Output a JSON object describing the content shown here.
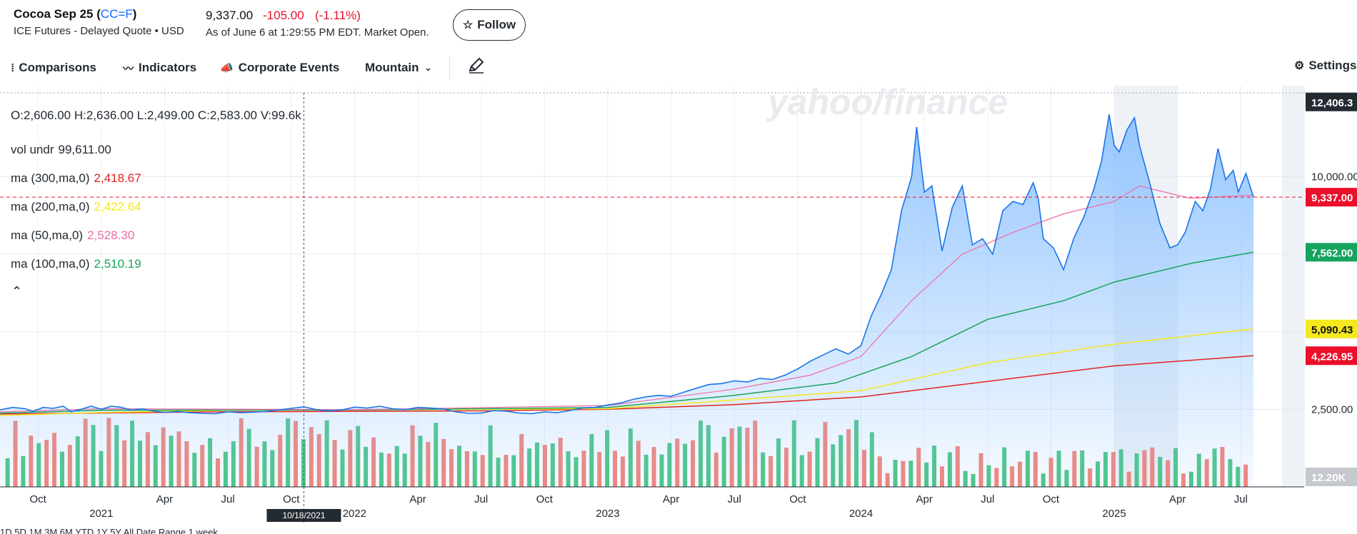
{
  "header": {
    "name": "Cocoa Sep 25",
    "ticker": "CC=F",
    "exchange": "ICE Futures - Delayed Quote • USD",
    "price": "9,337.00",
    "change": "-105.00",
    "change_pct": "(-1.11%)",
    "as_of": "As of June 6 at 1:29:55 PM EDT. Market Open.",
    "follow_label": "Follow"
  },
  "toolbar": {
    "comparisons": "Comparisons",
    "indicators": "Indicators",
    "corporate_events": "Corporate Events",
    "chart_type": "Mountain",
    "settings": "Settings"
  },
  "legend": {
    "ohlc": "O:2,606.00   H:2,636.00   L:2,499.00   C:2,583.00   V:99.6k",
    "vol_label": "vol undr",
    "vol_value": "99,611.00",
    "ma300_label": "ma (300,ma,0)",
    "ma300_value": "2,418.67",
    "ma200_label": "ma (200,ma,0)",
    "ma200_value": "2,422.64",
    "ma50_label": "ma (50,ma,0)",
    "ma50_value": "2,528.30",
    "ma100_label": "ma (100,ma,0)",
    "ma100_value": "2,510.19"
  },
  "watermark": "yahoo/finance",
  "crosshair_date": "10/18/2021",
  "colors": {
    "price_line": "#1a74e8",
    "area_fill": "#8fc3ff",
    "ma300": "#e3221f",
    "ma200": "#f5e81d",
    "ma50": "#f06aa4",
    "ma100": "#16a35e",
    "vol_up": "#3fc27c",
    "vol_down": "#f47b6e",
    "negative": "#eb0f29"
  },
  "chart_data": {
    "type": "area",
    "ylim": [
      0,
      12700
    ],
    "y_ticks": [
      {
        "value": 2500,
        "label": "2,500.00"
      },
      {
        "value": 5000,
        "label": ""
      },
      {
        "value": 7500,
        "label": ""
      },
      {
        "value": 10000,
        "label": "10,000.00"
      }
    ],
    "right_labels": [
      {
        "value": 12406,
        "label": "12,406.3",
        "bg": "#232a31",
        "fg": "#ffffff"
      },
      {
        "value": 9337,
        "label": "9,337.00",
        "bg": "#eb0f29",
        "fg": "#ffffff"
      },
      {
        "value": 7562,
        "label": "7,562.00",
        "bg": "#16a35e",
        "fg": "#ffffff"
      },
      {
        "value": 5090,
        "label": "5,090.43",
        "bg": "#f5e81d",
        "fg": "#111111"
      },
      {
        "value": 4227,
        "label": "4,226.95",
        "bg": "#eb0f29",
        "fg": "#ffffff"
      }
    ],
    "volume_label": "12.20K",
    "dashed_levels": [
      12406,
      9337
    ],
    "x_labels_month": [
      {
        "t": 2020.75,
        "label": "Oct"
      },
      {
        "t": 2021.25,
        "label": "Apr"
      },
      {
        "t": 2021.5,
        "label": "Jul"
      },
      {
        "t": 2021.75,
        "label": "Oct"
      },
      {
        "t": 2022.25,
        "label": "Apr"
      },
      {
        "t": 2022.5,
        "label": "Jul"
      },
      {
        "t": 2022.75,
        "label": "Oct"
      },
      {
        "t": 2023.25,
        "label": "Apr"
      },
      {
        "t": 2023.5,
        "label": "Jul"
      },
      {
        "t": 2023.75,
        "label": "Oct"
      },
      {
        "t": 2024.25,
        "label": "Apr"
      },
      {
        "t": 2024.5,
        "label": "Jul"
      },
      {
        "t": 2024.75,
        "label": "Oct"
      },
      {
        "t": 2025.25,
        "label": "Apr"
      },
      {
        "t": 2025.5,
        "label": "Jul"
      }
    ],
    "x_labels_year": [
      {
        "t": 2021.0,
        "label": "2021"
      },
      {
        "t": 2022.0,
        "label": "2022"
      },
      {
        "t": 2023.0,
        "label": "2023"
      },
      {
        "t": 2024.0,
        "label": "2024"
      },
      {
        "t": 2025.0,
        "label": "2025"
      }
    ],
    "xlim": [
      2020.6,
      2025.75
    ],
    "crosshair_t": 2021.8,
    "shade_range": [
      2025.0,
      2025.25
    ],
    "price": [
      [
        2020.6,
        2480
      ],
      [
        2020.65,
        2560
      ],
      [
        2020.7,
        2520
      ],
      [
        2020.73,
        2430
      ],
      [
        2020.77,
        2560
      ],
      [
        2020.81,
        2530
      ],
      [
        2020.85,
        2600
      ],
      [
        2020.88,
        2420
      ],
      [
        2020.92,
        2500
      ],
      [
        2020.96,
        2600
      ],
      [
        2021.0,
        2500
      ],
      [
        2021.04,
        2600
      ],
      [
        2021.08,
        2560
      ],
      [
        2021.12,
        2470
      ],
      [
        2021.16,
        2520
      ],
      [
        2021.2,
        2450
      ],
      [
        2021.25,
        2400
      ],
      [
        2021.3,
        2430
      ],
      [
        2021.35,
        2390
      ],
      [
        2021.4,
        2370
      ],
      [
        2021.45,
        2360
      ],
      [
        2021.5,
        2420
      ],
      [
        2021.55,
        2390
      ],
      [
        2021.6,
        2410
      ],
      [
        2021.65,
        2430
      ],
      [
        2021.7,
        2480
      ],
      [
        2021.75,
        2530
      ],
      [
        2021.8,
        2580
      ],
      [
        2021.85,
        2490
      ],
      [
        2021.9,
        2440
      ],
      [
        2021.95,
        2480
      ],
      [
        2022.0,
        2570
      ],
      [
        2022.05,
        2540
      ],
      [
        2022.1,
        2600
      ],
      [
        2022.15,
        2520
      ],
      [
        2022.2,
        2490
      ],
      [
        2022.25,
        2560
      ],
      [
        2022.3,
        2540
      ],
      [
        2022.35,
        2510
      ],
      [
        2022.4,
        2420
      ],
      [
        2022.45,
        2370
      ],
      [
        2022.5,
        2380
      ],
      [
        2022.55,
        2460
      ],
      [
        2022.6,
        2440
      ],
      [
        2022.65,
        2380
      ],
      [
        2022.7,
        2360
      ],
      [
        2022.75,
        2420
      ],
      [
        2022.8,
        2390
      ],
      [
        2022.85,
        2460
      ],
      [
        2022.9,
        2540
      ],
      [
        2022.95,
        2560
      ],
      [
        2023.0,
        2640
      ],
      [
        2023.05,
        2700
      ],
      [
        2023.1,
        2820
      ],
      [
        2023.15,
        2900
      ],
      [
        2023.2,
        2950
      ],
      [
        2023.25,
        2920
      ],
      [
        2023.3,
        3050
      ],
      [
        2023.35,
        3180
      ],
      [
        2023.4,
        3300
      ],
      [
        2023.45,
        3330
      ],
      [
        2023.5,
        3420
      ],
      [
        2023.55,
        3380
      ],
      [
        2023.6,
        3500
      ],
      [
        2023.65,
        3460
      ],
      [
        2023.7,
        3600
      ],
      [
        2023.75,
        3800
      ],
      [
        2023.8,
        4050
      ],
      [
        2023.85,
        4250
      ],
      [
        2023.9,
        4450
      ],
      [
        2023.95,
        4280
      ],
      [
        2024.0,
        4550
      ],
      [
        2024.04,
        5500
      ],
      [
        2024.08,
        6200
      ],
      [
        2024.12,
        7000
      ],
      [
        2024.16,
        8900
      ],
      [
        2024.2,
        10000
      ],
      [
        2024.22,
        11600
      ],
      [
        2024.25,
        9500
      ],
      [
        2024.28,
        9700
      ],
      [
        2024.32,
        7600
      ],
      [
        2024.36,
        9000
      ],
      [
        2024.4,
        9700
      ],
      [
        2024.44,
        7800
      ],
      [
        2024.48,
        8000
      ],
      [
        2024.52,
        7500
      ],
      [
        2024.56,
        8900
      ],
      [
        2024.6,
        9200
      ],
      [
        2024.64,
        9100
      ],
      [
        2024.68,
        9800
      ],
      [
        2024.7,
        9300
      ],
      [
        2024.72,
        8000
      ],
      [
        2024.76,
        7700
      ],
      [
        2024.8,
        7000
      ],
      [
        2024.84,
        8000
      ],
      [
        2024.88,
        8700
      ],
      [
        2024.92,
        9600
      ],
      [
        2024.95,
        10500
      ],
      [
        2024.98,
        12000
      ],
      [
        2025.0,
        11000
      ],
      [
        2025.02,
        10800
      ],
      [
        2025.05,
        11500
      ],
      [
        2025.08,
        11900
      ],
      [
        2025.1,
        11000
      ],
      [
        2025.14,
        9800
      ],
      [
        2025.18,
        8500
      ],
      [
        2025.22,
        7700
      ],
      [
        2025.25,
        7800
      ],
      [
        2025.28,
        8200
      ],
      [
        2025.32,
        9200
      ],
      [
        2025.35,
        8900
      ],
      [
        2025.38,
        9600
      ],
      [
        2025.41,
        10900
      ],
      [
        2025.44,
        9900
      ],
      [
        2025.47,
        10200
      ],
      [
        2025.49,
        9500
      ],
      [
        2025.52,
        10100
      ],
      [
        2025.55,
        9337
      ]
    ],
    "ma300": [
      [
        2020.6,
        2350
      ],
      [
        2021.5,
        2420
      ],
      [
        2022.5,
        2450
      ],
      [
        2023.0,
        2500
      ],
      [
        2023.5,
        2650
      ],
      [
        2024.0,
        2900
      ],
      [
        2024.5,
        3400
      ],
      [
        2025.0,
        3900
      ],
      [
        2025.55,
        4227
      ]
    ],
    "ma200": [
      [
        2020.6,
        2300
      ],
      [
        2021.0,
        2400
      ],
      [
        2021.5,
        2470
      ],
      [
        2022.0,
        2480
      ],
      [
        2022.5,
        2500
      ],
      [
        2023.0,
        2520
      ],
      [
        2023.5,
        2800
      ],
      [
        2024.0,
        3100
      ],
      [
        2024.5,
        4000
      ],
      [
        2025.0,
        4600
      ],
      [
        2025.55,
        5090
      ]
    ],
    "ma100": [
      [
        2020.6,
        2380
      ],
      [
        2021.0,
        2470
      ],
      [
        2022.0,
        2480
      ],
      [
        2023.0,
        2560
      ],
      [
        2023.5,
        2950
      ],
      [
        2023.9,
        3350
      ],
      [
        2024.2,
        4200
      ],
      [
        2024.5,
        5400
      ],
      [
        2024.8,
        6000
      ],
      [
        2025.0,
        6600
      ],
      [
        2025.3,
        7200
      ],
      [
        2025.55,
        7562
      ]
    ],
    "ma50": [
      [
        2020.6,
        2420
      ],
      [
        2021.0,
        2520
      ],
      [
        2022.0,
        2490
      ],
      [
        2023.0,
        2620
      ],
      [
        2023.5,
        3150
      ],
      [
        2023.8,
        3600
      ],
      [
        2024.0,
        4200
      ],
      [
        2024.2,
        6000
      ],
      [
        2024.4,
        7500
      ],
      [
        2024.6,
        8200
      ],
      [
        2024.8,
        8800
      ],
      [
        2025.0,
        9200
      ],
      [
        2025.1,
        9700
      ],
      [
        2025.3,
        9300
      ],
      [
        2025.55,
        9400
      ]
    ],
    "volume_up": [],
    "volume_down": []
  },
  "range_bar": "1D   5D   1M   3M   6M   YTD   1Y   5Y   All   Date Range   1 week"
}
